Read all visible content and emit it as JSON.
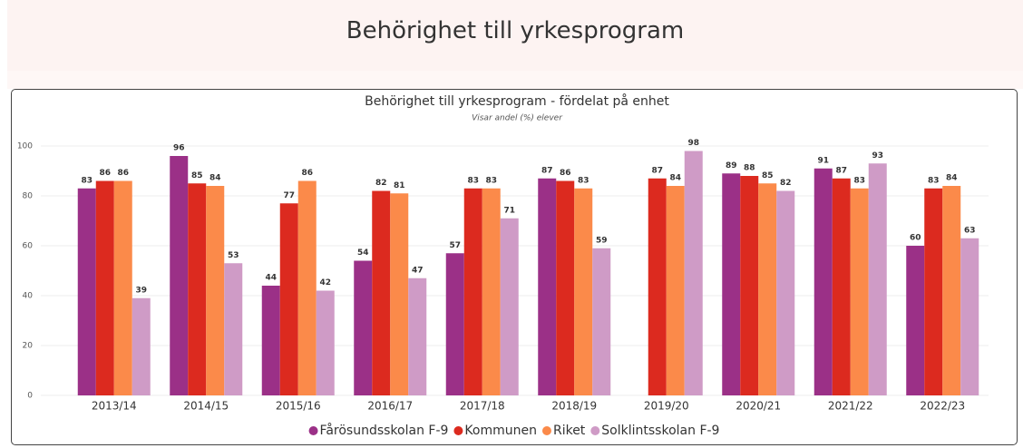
{
  "page_title": "Behörighet till yrkesprogram",
  "chart_data": {
    "type": "bar",
    "title": "Behörighet till yrkesprogram - fördelat på enhet",
    "subtitle": "Visar andel (%) elever",
    "categories": [
      "2013/14",
      "2014/15",
      "2015/16",
      "2016/17",
      "2017/18",
      "2018/19",
      "2019/20",
      "2020/21",
      "2021/22",
      "2022/23"
    ],
    "series": [
      {
        "name": "Fårösundsskolan F-9",
        "color": "#9b3087",
        "values": [
          83,
          96,
          44,
          54,
          57,
          87,
          null,
          89,
          91,
          60
        ]
      },
      {
        "name": "Kommunen",
        "color": "#dc2a1f",
        "values": [
          86,
          85,
          77,
          82,
          83,
          86,
          87,
          88,
          87,
          83
        ]
      },
      {
        "name": "Riket",
        "color": "#fb8a4a",
        "values": [
          86,
          84,
          86,
          81,
          83,
          83,
          84,
          85,
          83,
          84
        ]
      },
      {
        "name": "Solklintsskolan F-9",
        "color": "#cf9bc6",
        "values": [
          39,
          53,
          42,
          47,
          71,
          59,
          98,
          82,
          93,
          63
        ]
      }
    ],
    "ylim": [
      0,
      100
    ],
    "yticks": [
      0,
      20,
      40,
      60,
      80,
      100
    ],
    "grid": true,
    "legend": "bottom"
  }
}
